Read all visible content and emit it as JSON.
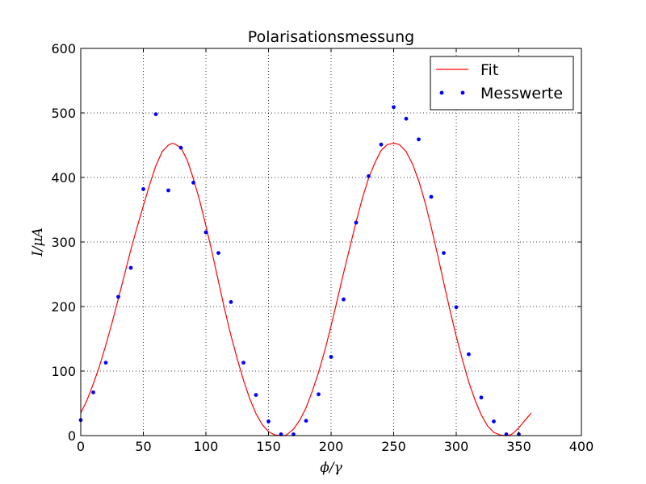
{
  "chart_data": {
    "type": "scatter",
    "title": "Polarisationsmessung",
    "xlabel": "ϕ/γ",
    "ylabel": "I/μA",
    "xlim": [
      0,
      400
    ],
    "ylim": [
      0,
      600
    ],
    "xticks": [
      0,
      50,
      100,
      150,
      200,
      250,
      300,
      350,
      400
    ],
    "yticks": [
      0,
      100,
      200,
      300,
      400,
      500,
      600
    ],
    "grid": true,
    "legend_position": "top-right",
    "series": [
      {
        "name": "Fit",
        "kind": "line",
        "color": "#ff0000",
        "x": [
          0,
          5,
          10,
          15,
          20,
          25,
          30,
          35,
          40,
          45,
          50,
          55,
          60,
          65,
          70,
          73,
          75,
          80,
          85,
          90,
          95,
          100,
          105,
          110,
          115,
          120,
          125,
          130,
          135,
          140,
          145,
          150,
          155,
          160,
          163,
          165,
          170,
          175,
          180,
          185,
          190,
          195,
          200,
          205,
          210,
          215,
          220,
          225,
          230,
          235,
          240,
          245,
          250,
          253,
          255,
          260,
          265,
          270,
          275,
          280,
          285,
          290,
          295,
          300,
          305,
          310,
          315,
          320,
          325,
          330,
          335,
          340,
          343,
          345,
          350,
          355,
          360
        ],
        "y": [
          35,
          55,
          80,
          108,
          140,
          175,
          212,
          250,
          288,
          323,
          356,
          389,
          418,
          440,
          450,
          453,
          452,
          446,
          427,
          398,
          364,
          325,
          283,
          239,
          195,
          155,
          119,
          86,
          57,
          34,
          17,
          6,
          1,
          0,
          0,
          2,
          10,
          24,
          43,
          69,
          98,
          132,
          170,
          211,
          252,
          292,
          331,
          368,
          399,
          423,
          442,
          451,
          453,
          452,
          450,
          440,
          421,
          395,
          362,
          323,
          281,
          237,
          194,
          154,
          117,
          83,
          55,
          32,
          15,
          5,
          1,
          0,
          1,
          3,
          12,
          24,
          35
        ]
      },
      {
        "name": "Messwerte",
        "kind": "points",
        "color": "#0000ff",
        "x": [
          0,
          10,
          20,
          30,
          40,
          50,
          60,
          70,
          80,
          90,
          100,
          110,
          120,
          130,
          140,
          150,
          160,
          170,
          180,
          190,
          200,
          210,
          220,
          230,
          240,
          250,
          260,
          270,
          280,
          290,
          300,
          310,
          320,
          330,
          340,
          350
        ],
        "y": [
          24,
          67,
          113,
          215,
          260,
          382,
          498,
          380,
          446,
          392,
          315,
          283,
          207,
          113,
          63,
          22,
          2,
          2,
          23,
          64,
          122,
          211,
          330,
          402,
          451,
          509,
          491,
          459,
          370,
          283,
          199,
          126,
          59,
          22,
          2,
          2
        ]
      }
    ]
  }
}
